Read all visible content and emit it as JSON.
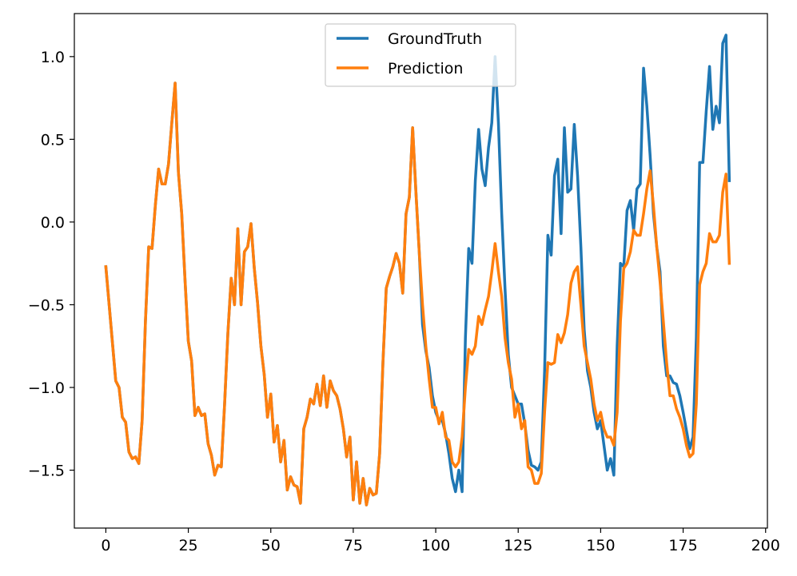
{
  "chart_data": {
    "type": "line",
    "title": "",
    "xlabel": "",
    "ylabel": "",
    "xlim": [
      -9.55,
      200.55
    ],
    "ylim": [
      -1.85,
      1.26
    ],
    "xticks": [
      0,
      25,
      50,
      75,
      100,
      125,
      150,
      175,
      200
    ],
    "xtick_labels": [
      "0",
      "25",
      "50",
      "75",
      "100",
      "125",
      "150",
      "175",
      "200"
    ],
    "yticks": [
      1.0,
      0.5,
      0.0,
      -0.5,
      -1.0,
      -1.5
    ],
    "ytick_labels": [
      "1.0",
      "0.5",
      "0.0",
      "−0.5",
      "−1.0",
      "−1.5"
    ],
    "grid": false,
    "legend_position": "upper center",
    "series": [
      {
        "name": "GroundTruth",
        "color": "#1f77b4",
        "x_start": 0,
        "values": [
          -0.27,
          -0.5,
          -0.73,
          -0.96,
          -1.0,
          -1.18,
          -1.21,
          -1.39,
          -1.43,
          -1.42,
          -1.46,
          -1.2,
          -0.6,
          -0.15,
          -0.16,
          0.1,
          0.32,
          0.23,
          0.23,
          0.35,
          0.6,
          0.84,
          0.3,
          0.05,
          -0.35,
          -0.72,
          -0.84,
          -1.17,
          -1.12,
          -1.17,
          -1.16,
          -1.34,
          -1.41,
          -1.53,
          -1.47,
          -1.48,
          -1.1,
          -0.67,
          -0.34,
          -0.5,
          -0.04,
          -0.5,
          -0.18,
          -0.15,
          -0.01,
          -0.28,
          -0.49,
          -0.75,
          -0.92,
          -1.18,
          -1.04,
          -1.33,
          -1.23,
          -1.45,
          -1.32,
          -1.62,
          -1.54,
          -1.59,
          -1.6,
          -1.7,
          -1.25,
          -1.18,
          -1.07,
          -1.1,
          -0.98,
          -1.11,
          -0.93,
          -1.12,
          -0.96,
          -1.02,
          -1.05,
          -1.13,
          -1.25,
          -1.42,
          -1.3,
          -1.68,
          -1.45,
          -1.7,
          -1.55,
          -1.71,
          -1.61,
          -1.65,
          -1.64,
          -1.4,
          -0.85,
          -0.4,
          -0.33,
          -0.27,
          -0.19,
          -0.25,
          -0.43,
          0.05,
          0.15,
          0.57,
          0.18,
          -0.18,
          -0.62,
          -0.78,
          -0.88,
          -1.05,
          -1.15,
          -1.2,
          -1.2,
          -1.28,
          -1.4,
          -1.55,
          -1.63,
          -1.5,
          -1.63,
          -0.7,
          -0.16,
          -0.25,
          0.25,
          0.56,
          0.32,
          0.22,
          0.45,
          0.6,
          1.0,
          0.6,
          0.05,
          -0.4,
          -0.8,
          -1.0,
          -1.05,
          -1.1,
          -1.1,
          -1.22,
          -1.38,
          -1.47,
          -1.48,
          -1.5,
          -1.45,
          -0.9,
          -0.08,
          -0.2,
          0.28,
          0.38,
          -0.07,
          0.57,
          0.18,
          0.2,
          0.59,
          0.28,
          -0.15,
          -0.65,
          -0.9,
          -1.0,
          -1.15,
          -1.25,
          -1.2,
          -1.35,
          -1.5,
          -1.43,
          -1.53,
          -0.75,
          -0.25,
          -0.27,
          0.07,
          0.13,
          -0.05,
          0.2,
          0.23,
          0.93,
          0.7,
          0.4,
          0.05,
          -0.15,
          -0.3,
          -0.75,
          -0.93,
          -0.93,
          -0.97,
          -0.98,
          -1.05,
          -1.15,
          -1.26,
          -1.37,
          -1.3,
          -0.7,
          0.36,
          0.36,
          0.67,
          0.94,
          0.56,
          0.7,
          0.6,
          1.08,
          1.13,
          0.25
        ]
      },
      {
        "name": "Prediction",
        "color": "#ff7f0e",
        "x_start": 0,
        "values": [
          -0.27,
          -0.5,
          -0.73,
          -0.96,
          -1.0,
          -1.18,
          -1.21,
          -1.39,
          -1.43,
          -1.42,
          -1.46,
          -1.2,
          -0.6,
          -0.15,
          -0.16,
          0.1,
          0.32,
          0.23,
          0.23,
          0.35,
          0.6,
          0.84,
          0.3,
          0.05,
          -0.35,
          -0.72,
          -0.84,
          -1.17,
          -1.12,
          -1.17,
          -1.16,
          -1.34,
          -1.41,
          -1.53,
          -1.47,
          -1.48,
          -1.1,
          -0.67,
          -0.34,
          -0.5,
          -0.04,
          -0.5,
          -0.18,
          -0.15,
          -0.01,
          -0.28,
          -0.49,
          -0.75,
          -0.92,
          -1.18,
          -1.04,
          -1.33,
          -1.23,
          -1.45,
          -1.32,
          -1.62,
          -1.54,
          -1.59,
          -1.6,
          -1.7,
          -1.25,
          -1.18,
          -1.07,
          -1.1,
          -0.98,
          -1.11,
          -0.93,
          -1.12,
          -0.96,
          -1.02,
          -1.05,
          -1.13,
          -1.25,
          -1.42,
          -1.3,
          -1.68,
          -1.45,
          -1.7,
          -1.55,
          -1.71,
          -1.61,
          -1.65,
          -1.64,
          -1.4,
          -0.85,
          -0.4,
          -0.33,
          -0.27,
          -0.19,
          -0.25,
          -0.43,
          0.05,
          0.15,
          0.57,
          0.18,
          -0.18,
          -0.5,
          -0.75,
          -0.95,
          -1.12,
          -1.12,
          -1.22,
          -1.15,
          -1.3,
          -1.32,
          -1.45,
          -1.48,
          -1.45,
          -1.3,
          -1.0,
          -0.77,
          -0.8,
          -0.75,
          -0.57,
          -0.62,
          -0.53,
          -0.45,
          -0.3,
          -0.13,
          -0.3,
          -0.45,
          -0.7,
          -0.85,
          -0.95,
          -1.18,
          -1.1,
          -1.25,
          -1.2,
          -1.48,
          -1.5,
          -1.58,
          -1.58,
          -1.52,
          -1.15,
          -0.85,
          -0.86,
          -0.85,
          -0.68,
          -0.73,
          -0.67,
          -0.56,
          -0.37,
          -0.3,
          -0.27,
          -0.5,
          -0.75,
          -0.85,
          -0.95,
          -1.1,
          -1.2,
          -1.15,
          -1.25,
          -1.3,
          -1.3,
          -1.35,
          -1.15,
          -0.6,
          -0.28,
          -0.25,
          -0.18,
          -0.05,
          -0.08,
          -0.08,
          0.05,
          0.2,
          0.31,
          0.1,
          -0.15,
          -0.36,
          -0.6,
          -0.85,
          -1.05,
          -1.05,
          -1.13,
          -1.18,
          -1.25,
          -1.35,
          -1.42,
          -1.4,
          -1.1,
          -0.38,
          -0.3,
          -0.25,
          -0.07,
          -0.12,
          -0.12,
          -0.08,
          0.18,
          0.29,
          -0.25
        ]
      }
    ]
  }
}
